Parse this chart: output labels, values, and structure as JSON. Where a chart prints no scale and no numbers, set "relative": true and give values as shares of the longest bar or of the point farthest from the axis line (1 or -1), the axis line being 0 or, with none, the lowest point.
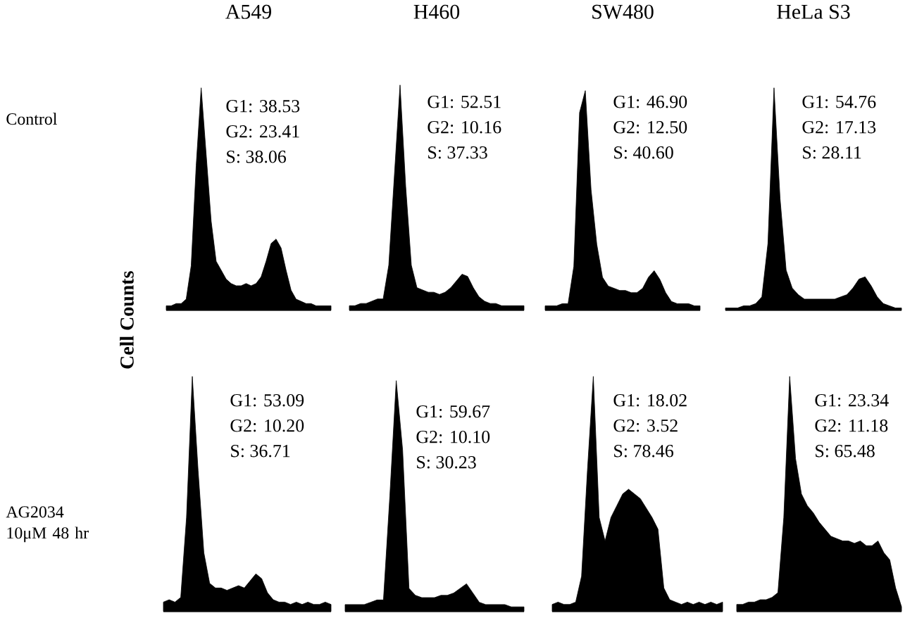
{
  "chart_data": [
    {
      "type": "area",
      "relative": true,
      "title": "A549",
      "ylabel": "Control",
      "color": "#000000",
      "categories": [
        null,
        null,
        null,
        null,
        null,
        null,
        null,
        null,
        null,
        null,
        null,
        null,
        null,
        null,
        null,
        null,
        null,
        null,
        null,
        null,
        null,
        null,
        null,
        null,
        null,
        null,
        null,
        null,
        null,
        null,
        null,
        null,
        null,
        null
      ],
      "values": [
        0.02,
        0.02,
        0.03,
        0.03,
        0.05,
        0.2,
        0.65,
        1.0,
        0.7,
        0.4,
        0.22,
        0.18,
        0.14,
        0.12,
        0.11,
        0.11,
        0.12,
        0.11,
        0.12,
        0.15,
        0.22,
        0.3,
        0.32,
        0.28,
        0.18,
        0.09,
        0.05,
        0.04,
        0.03,
        0.03,
        0.02,
        0.02,
        0.02,
        0.02
      ],
      "annotations": [
        "G1: 38.53",
        "G2: 23.41",
        "S: 38.06",
        "Cell Counts"
      ]
    },
    {
      "type": "area",
      "relative": true,
      "title": "H460",
      "color": "#000000",
      "categories": [
        null,
        null,
        null,
        null,
        null,
        null,
        null,
        null,
        null,
        null,
        null,
        null,
        null,
        null,
        null,
        null,
        null,
        null,
        null,
        null,
        null,
        null,
        null,
        null,
        null,
        null,
        null,
        null,
        null,
        null,
        null,
        null
      ],
      "values": [
        0.02,
        0.02,
        0.03,
        0.03,
        0.04,
        0.05,
        0.05,
        0.2,
        0.6,
        1.0,
        0.55,
        0.2,
        0.1,
        0.09,
        0.08,
        0.08,
        0.07,
        0.08,
        0.1,
        0.13,
        0.16,
        0.15,
        0.1,
        0.06,
        0.04,
        0.03,
        0.03,
        0.02,
        0.02,
        0.02,
        0.02,
        0.02
      ],
      "annotations": [
        "G1: 52.51",
        "G2: 10.16",
        "S: 37.33"
      ]
    },
    {
      "type": "area",
      "relative": true,
      "title": "SW480",
      "color": "#000000",
      "categories": [
        null,
        null,
        null,
        null,
        null,
        null,
        null,
        null,
        null,
        null,
        null,
        null,
        null,
        null,
        null,
        null,
        null,
        null,
        null,
        null,
        null,
        null,
        null,
        null,
        null,
        null,
        null,
        null
      ],
      "values": [
        0.02,
        0.02,
        0.02,
        0.03,
        0.03,
        0.2,
        0.9,
        1.0,
        0.55,
        0.3,
        0.15,
        0.11,
        0.1,
        0.09,
        0.09,
        0.08,
        0.08,
        0.1,
        0.15,
        0.18,
        0.14,
        0.08,
        0.04,
        0.03,
        0.03,
        0.03,
        0.02,
        0.02
      ],
      "annotations": [
        "G1: 46.90",
        "G2: 12.50",
        "S: 40.60"
      ]
    },
    {
      "type": "area",
      "relative": true,
      "title": "HeLa S3",
      "color": "#000000",
      "categories": [
        null,
        null,
        null,
        null,
        null,
        null,
        null,
        null,
        null,
        null,
        null,
        null,
        null,
        null,
        null,
        null,
        null,
        null,
        null,
        null,
        null,
        null,
        null,
        null,
        null,
        null,
        null,
        null,
        null,
        null
      ],
      "values": [
        0.01,
        0.01,
        0.01,
        0.02,
        0.02,
        0.03,
        0.06,
        0.3,
        1.0,
        0.5,
        0.18,
        0.1,
        0.07,
        0.05,
        0.05,
        0.05,
        0.05,
        0.05,
        0.05,
        0.06,
        0.07,
        0.1,
        0.14,
        0.15,
        0.11,
        0.06,
        0.03,
        0.02,
        0.01,
        0.01
      ],
      "annotations": [
        "G1: 54.76",
        "G2: 17.13",
        "S: 28.11"
      ]
    },
    {
      "type": "area",
      "relative": true,
      "ylabel": "AG2034 10μM 48 hr",
      "color": "#000000",
      "categories": [
        null,
        null,
        null,
        null,
        null,
        null,
        null,
        null,
        null,
        null,
        null,
        null,
        null,
        null,
        null,
        null,
        null,
        null,
        null,
        null,
        null,
        null,
        null,
        null,
        null,
        null,
        null,
        null,
        null,
        null
      ],
      "values": [
        0.04,
        0.05,
        0.04,
        0.06,
        0.4,
        1.0,
        0.6,
        0.25,
        0.12,
        0.1,
        0.1,
        0.09,
        0.1,
        0.11,
        0.1,
        0.13,
        0.16,
        0.14,
        0.08,
        0.05,
        0.04,
        0.04,
        0.03,
        0.04,
        0.03,
        0.04,
        0.03,
        0.03,
        0.04,
        0.03
      ],
      "annotations": [
        "G1: 53.09",
        "G2: 10.20",
        "S: 36.71"
      ]
    },
    {
      "type": "area",
      "relative": true,
      "color": "#000000",
      "categories": [
        null,
        null,
        null,
        null,
        null,
        null,
        null,
        null,
        null,
        null,
        null,
        null,
        null,
        null,
        null,
        null,
        null,
        null,
        null,
        null,
        null,
        null,
        null,
        null,
        null,
        null,
        null,
        null,
        null
      ],
      "values": [
        0.03,
        0.03,
        0.03,
        0.03,
        0.04,
        0.05,
        0.05,
        0.5,
        1.0,
        0.7,
        0.1,
        0.07,
        0.06,
        0.06,
        0.06,
        0.07,
        0.07,
        0.08,
        0.1,
        0.12,
        0.08,
        0.04,
        0.03,
        0.03,
        0.03,
        0.03,
        0.02,
        0.02,
        0.02
      ],
      "annotations": [
        "G1: 59.67",
        "G2: 10.10",
        "S: 30.23"
      ]
    },
    {
      "type": "area",
      "relative": true,
      "color": "#000000",
      "categories": [
        null,
        null,
        null,
        null,
        null,
        null,
        null,
        null,
        null,
        null,
        null,
        null,
        null,
        null,
        null,
        null,
        null,
        null,
        null,
        null,
        null,
        null,
        null,
        null,
        null,
        null,
        null,
        null,
        null,
        null
      ],
      "values": [
        0.03,
        0.04,
        0.03,
        0.03,
        0.04,
        0.15,
        0.6,
        1.0,
        0.4,
        0.3,
        0.4,
        0.45,
        0.5,
        0.52,
        0.5,
        0.48,
        0.44,
        0.4,
        0.35,
        0.1,
        0.05,
        0.04,
        0.03,
        0.04,
        0.03,
        0.04,
        0.03,
        0.04,
        0.03,
        0.04
      ],
      "annotations": [
        "G1: 18.02",
        "G2: 3.52",
        "S: 78.46"
      ]
    },
    {
      "type": "area",
      "relative": true,
      "color": "#000000",
      "categories": [
        null,
        null,
        null,
        null,
        null,
        null,
        null,
        null,
        null,
        null,
        null,
        null,
        null,
        null,
        null,
        null,
        null,
        null,
        null,
        null,
        null,
        null,
        null,
        null,
        null,
        null,
        null,
        null,
        null
      ],
      "values": [
        0.03,
        0.03,
        0.04,
        0.04,
        0.05,
        0.05,
        0.06,
        0.08,
        0.4,
        1.0,
        0.65,
        0.5,
        0.45,
        0.42,
        0.38,
        0.35,
        0.32,
        0.31,
        0.3,
        0.3,
        0.29,
        0.3,
        0.28,
        0.28,
        0.3,
        0.25,
        0.22,
        0.1,
        0.02
      ],
      "annotations": [
        "G1: 23.34",
        "G2: 11.18",
        "S: 65.48"
      ]
    }
  ]
}
